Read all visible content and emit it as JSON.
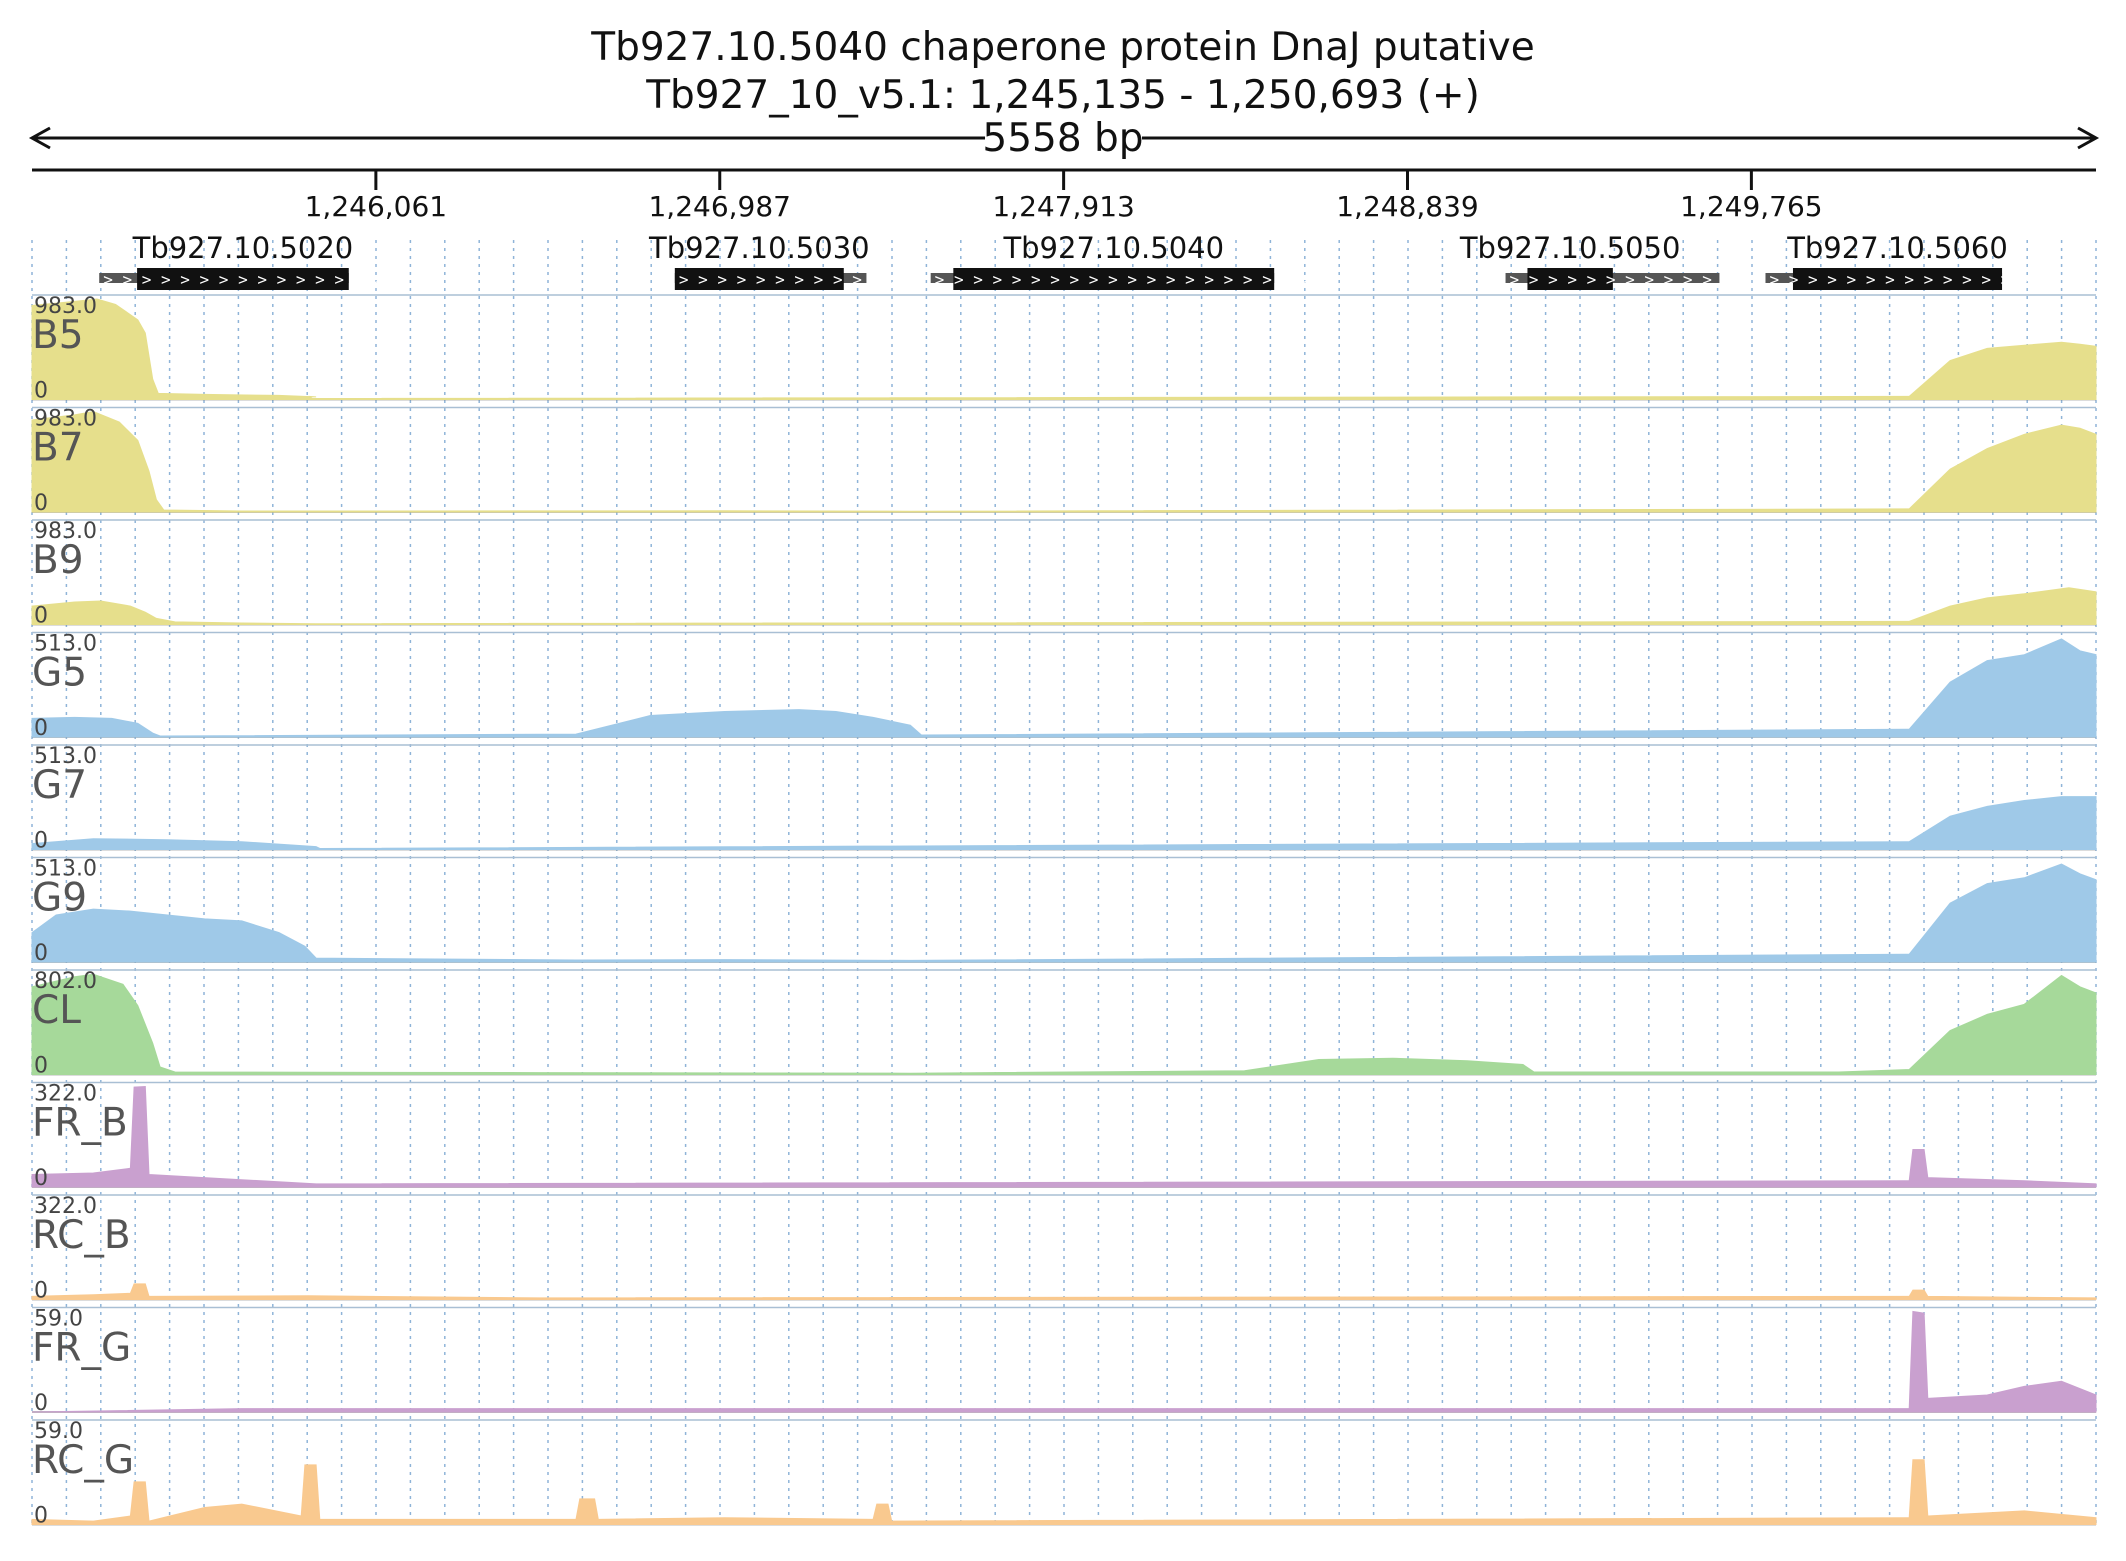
{
  "chart_data": {
    "type": "area",
    "title": "Tb927.10.5040  chaperone protein DnaJ  putative",
    "subtitle": "Tb927_10_v5.1: 1,245,135 - 1,250,693 (+)",
    "span_label": "5558 bp",
    "xlim": [
      1245135,
      1250693
    ],
    "ticks": [
      {
        "pos": 1246061,
        "label": "1,246,061"
      },
      {
        "pos": 1246987,
        "label": "1,246,987"
      },
      {
        "pos": 1247913,
        "label": "1,247,913"
      },
      {
        "pos": 1248839,
        "label": "1,248,839"
      },
      {
        "pos": 1249765,
        "label": "1,249,765"
      }
    ],
    "genes": [
      {
        "name": "Tb927.10.5020",
        "utr_start": 1245316,
        "cds_start": 1245418,
        "cds_end": 1245988,
        "utr_end": 1245988
      },
      {
        "name": "Tb927.10.5030",
        "utr_start": 1246866,
        "cds_start": 1246866,
        "cds_end": 1247321,
        "utr_end": 1247382
      },
      {
        "name": "Tb927.10.5040",
        "utr_start": 1247555,
        "cds_start": 1247616,
        "cds_end": 1248480,
        "utr_end": 1248480
      },
      {
        "name": "Tb927.10.5050",
        "utr_start": 1249103,
        "cds_start": 1249162,
        "cds_end": 1249392,
        "utr_end": 1249679
      },
      {
        "name": "Tb927.10.5060",
        "utr_start": 1249803,
        "cds_start": 1249877,
        "cds_end": 1250440,
        "utr_end": 1250440
      }
    ],
    "tracks": [
      {
        "name": "B5",
        "max_label": "983.0",
        "zero_label": "0",
        "max": 983,
        "color": "#e6df8c",
        "points": [
          [
            1245135,
            920
          ],
          [
            1245250,
            960
          ],
          [
            1245310,
            983
          ],
          [
            1245360,
            930
          ],
          [
            1245420,
            780
          ],
          [
            1245440,
            650
          ],
          [
            1245460,
            200
          ],
          [
            1245475,
            60
          ],
          [
            1245600,
            50
          ],
          [
            1245800,
            40
          ],
          [
            1245900,
            25
          ],
          [
            1245880,
            30
          ],
          [
            1245890,
            10
          ],
          [
            1250190,
            30
          ],
          [
            1250300,
            380
          ],
          [
            1250400,
            500
          ],
          [
            1250500,
            530
          ],
          [
            1250600,
            560
          ],
          [
            1250650,
            540
          ],
          [
            1250693,
            520
          ]
        ]
      },
      {
        "name": "B7",
        "max_label": "983.0",
        "zero_label": "0",
        "max": 983,
        "color": "#e6df8c",
        "points": [
          [
            1245135,
            900
          ],
          [
            1245250,
            950
          ],
          [
            1245300,
            983
          ],
          [
            1245370,
            880
          ],
          [
            1245420,
            700
          ],
          [
            1245450,
            400
          ],
          [
            1245470,
            120
          ],
          [
            1245490,
            20
          ],
          [
            1245700,
            10
          ],
          [
            1247000,
            12
          ],
          [
            1247500,
            8
          ],
          [
            1250190,
            30
          ],
          [
            1250300,
            420
          ],
          [
            1250400,
            620
          ],
          [
            1250500,
            760
          ],
          [
            1250600,
            850
          ],
          [
            1250650,
            820
          ],
          [
            1250693,
            760
          ]
        ]
      },
      {
        "name": "B9",
        "max_label": "983.0",
        "zero_label": "0",
        "max": 983,
        "color": "#e6df8c",
        "points": [
          [
            1245135,
            180
          ],
          [
            1245250,
            220
          ],
          [
            1245320,
            230
          ],
          [
            1245400,
            180
          ],
          [
            1245440,
            120
          ],
          [
            1245470,
            60
          ],
          [
            1245520,
            25
          ],
          [
            1245700,
            15
          ],
          [
            1245900,
            8
          ],
          [
            1250190,
            30
          ],
          [
            1250300,
            180
          ],
          [
            1250400,
            260
          ],
          [
            1250500,
            300
          ],
          [
            1250620,
            360
          ],
          [
            1250693,
            320
          ]
        ]
      },
      {
        "name": "G5",
        "max_label": "513.0",
        "zero_label": "0",
        "max": 513,
        "color": "#9fc9e8",
        "points": [
          [
            1245135,
            95
          ],
          [
            1245250,
            100
          ],
          [
            1245350,
            95
          ],
          [
            1245420,
            70
          ],
          [
            1245460,
            20
          ],
          [
            1245480,
            5
          ],
          [
            1246600,
            15
          ],
          [
            1246800,
            110
          ],
          [
            1247000,
            130
          ],
          [
            1247200,
            140
          ],
          [
            1247300,
            130
          ],
          [
            1247400,
            100
          ],
          [
            1247500,
            60
          ],
          [
            1247530,
            10
          ],
          [
            1250190,
            40
          ],
          [
            1250300,
            280
          ],
          [
            1250400,
            390
          ],
          [
            1250500,
            420
          ],
          [
            1250600,
            500
          ],
          [
            1250650,
            440
          ],
          [
            1250693,
            420
          ]
        ]
      },
      {
        "name": "G7",
        "max_label": "513.0",
        "zero_label": "0",
        "max": 513,
        "color": "#9fc9e8",
        "points": [
          [
            1245135,
            30
          ],
          [
            1245300,
            55
          ],
          [
            1245500,
            50
          ],
          [
            1245700,
            40
          ],
          [
            1245900,
            15
          ],
          [
            1245910,
            5
          ],
          [
            1250190,
            40
          ],
          [
            1250300,
            170
          ],
          [
            1250400,
            220
          ],
          [
            1250500,
            250
          ],
          [
            1250600,
            270
          ],
          [
            1250693,
            270
          ]
        ]
      },
      {
        "name": "G9",
        "max_label": "513.0",
        "zero_label": "0",
        "max": 513,
        "color": "#9fc9e8",
        "points": [
          [
            1245135,
            150
          ],
          [
            1245200,
            240
          ],
          [
            1245300,
            270
          ],
          [
            1245400,
            260
          ],
          [
            1245500,
            240
          ],
          [
            1245600,
            220
          ],
          [
            1245700,
            210
          ],
          [
            1245800,
            150
          ],
          [
            1245870,
            80
          ],
          [
            1245900,
            20
          ],
          [
            1246600,
            10
          ],
          [
            1247000,
            12
          ],
          [
            1247500,
            8
          ],
          [
            1250190,
            40
          ],
          [
            1250300,
            300
          ],
          [
            1250400,
            400
          ],
          [
            1250500,
            430
          ],
          [
            1250600,
            500
          ],
          [
            1250650,
            450
          ],
          [
            1250693,
            420
          ]
        ]
      },
      {
        "name": "CL",
        "max_label": "802.0",
        "zero_label": "0",
        "max": 802,
        "color": "#a6d99a",
        "points": [
          [
            1245135,
            700
          ],
          [
            1245250,
            780
          ],
          [
            1245300,
            800
          ],
          [
            1245380,
            720
          ],
          [
            1245420,
            550
          ],
          [
            1245460,
            250
          ],
          [
            1245480,
            60
          ],
          [
            1245520,
            20
          ],
          [
            1246500,
            15
          ],
          [
            1247500,
            10
          ],
          [
            1248400,
            30
          ],
          [
            1248600,
            120
          ],
          [
            1248800,
            130
          ],
          [
            1249000,
            110
          ],
          [
            1249150,
            80
          ],
          [
            1249180,
            20
          ],
          [
            1250000,
            20
          ],
          [
            1250190,
            40
          ],
          [
            1250300,
            350
          ],
          [
            1250400,
            480
          ],
          [
            1250500,
            560
          ],
          [
            1250600,
            790
          ],
          [
            1250650,
            700
          ],
          [
            1250693,
            650
          ]
        ]
      },
      {
        "name": "FR_B",
        "max_label": "322.0",
        "zero_label": "0",
        "max": 322,
        "color": "#c9a0cf",
        "points": [
          [
            1245135,
            40
          ],
          [
            1245300,
            45
          ],
          [
            1245400,
            60
          ],
          [
            1245410,
            320
          ],
          [
            1245440,
            322
          ],
          [
            1245450,
            40
          ],
          [
            1245900,
            10
          ],
          [
            1250190,
            20
          ],
          [
            1250200,
            120
          ],
          [
            1250230,
            120
          ],
          [
            1250240,
            30
          ],
          [
            1250500,
            20
          ],
          [
            1250693,
            10
          ]
        ]
      },
      {
        "name": "RC_B",
        "max_label": "322.0",
        "zero_label": "0",
        "max": 322,
        "color": "#f9c98f",
        "points": [
          [
            1245135,
            10
          ],
          [
            1245300,
            15
          ],
          [
            1245400,
            20
          ],
          [
            1245410,
            50
          ],
          [
            1245440,
            50
          ],
          [
            1245450,
            10
          ],
          [
            1245880,
            12
          ],
          [
            1246500,
            5
          ],
          [
            1250190,
            10
          ],
          [
            1250200,
            30
          ],
          [
            1250230,
            30
          ],
          [
            1250240,
            10
          ],
          [
            1250693,
            5
          ]
        ]
      },
      {
        "name": "FR_G",
        "max_label": "59.0",
        "zero_label": "0",
        "max": 59,
        "color": "#c9a0cf",
        "points": [
          [
            1245135,
            0
          ],
          [
            1245700,
            2
          ],
          [
            1245900,
            2
          ],
          [
            1250190,
            2
          ],
          [
            1250200,
            59
          ],
          [
            1250230,
            58
          ],
          [
            1250240,
            8
          ],
          [
            1250400,
            10
          ],
          [
            1250500,
            15
          ],
          [
            1250600,
            18
          ],
          [
            1250693,
            10
          ]
        ]
      },
      {
        "name": "RC_G",
        "max_label": "59.0",
        "zero_label": "0",
        "max": 59,
        "color": "#f9c98f",
        "points": [
          [
            1245135,
            3
          ],
          [
            1245300,
            2
          ],
          [
            1245400,
            5
          ],
          [
            1245410,
            25
          ],
          [
            1245440,
            25
          ],
          [
            1245450,
            2
          ],
          [
            1245600,
            10
          ],
          [
            1245700,
            12
          ],
          [
            1245860,
            5
          ],
          [
            1245870,
            35
          ],
          [
            1245900,
            35
          ],
          [
            1245910,
            3
          ],
          [
            1246600,
            3
          ],
          [
            1246610,
            15
          ],
          [
            1246650,
            15
          ],
          [
            1246660,
            3
          ],
          [
            1247000,
            4
          ],
          [
            1247400,
            3
          ],
          [
            1247410,
            12
          ],
          [
            1247440,
            12
          ],
          [
            1247450,
            2
          ],
          [
            1250190,
            4
          ],
          [
            1250200,
            38
          ],
          [
            1250230,
            38
          ],
          [
            1250240,
            5
          ],
          [
            1250500,
            8
          ],
          [
            1250693,
            4
          ]
        ]
      }
    ]
  }
}
